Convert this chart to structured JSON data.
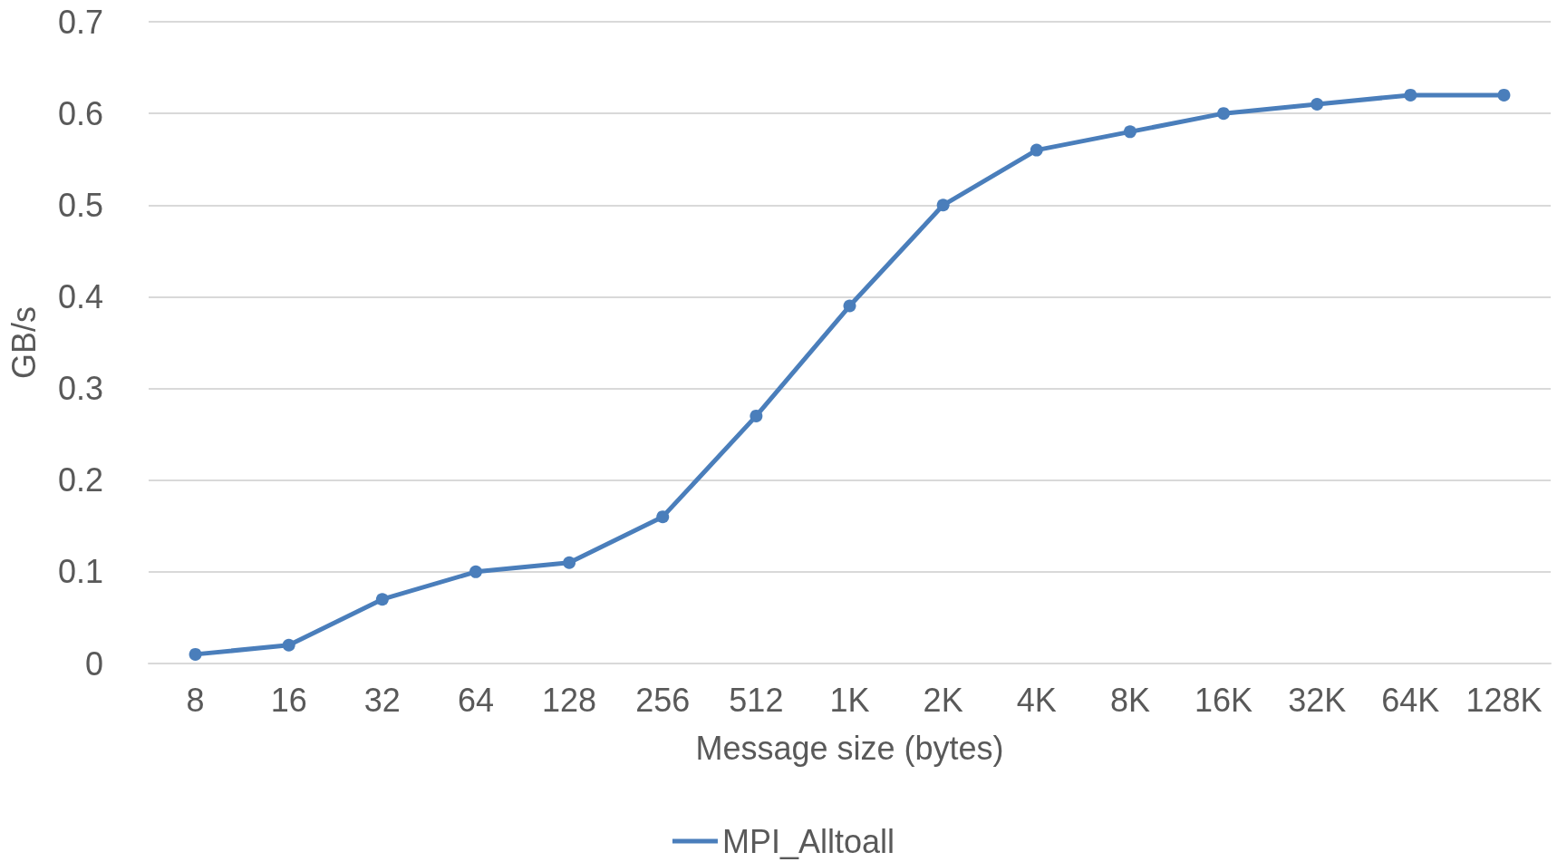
{
  "chart_data": {
    "type": "line",
    "xlabel": "Message size (bytes)",
    "ylabel": "GB/s",
    "categories": [
      "8",
      "16",
      "32",
      "64",
      "128",
      "256",
      "512",
      "1K",
      "2K",
      "4K",
      "8K",
      "16K",
      "32K",
      "64K",
      "128K"
    ],
    "series": [
      {
        "name": "MPI_Alltoall",
        "color": "#4a7ebb",
        "values": [
          0.01,
          0.02,
          0.07,
          0.1,
          0.11,
          0.16,
          0.27,
          0.39,
          0.5,
          0.56,
          0.58,
          0.6,
          0.61,
          0.62,
          0.62
        ]
      }
    ],
    "ylim": [
      0,
      0.7
    ],
    "yticks": [
      0,
      0.1,
      0.2,
      0.3,
      0.4,
      0.5,
      0.6,
      0.7
    ],
    "grid": "y",
    "legend": "bottom",
    "marker": "circle",
    "line_style": "solid"
  }
}
